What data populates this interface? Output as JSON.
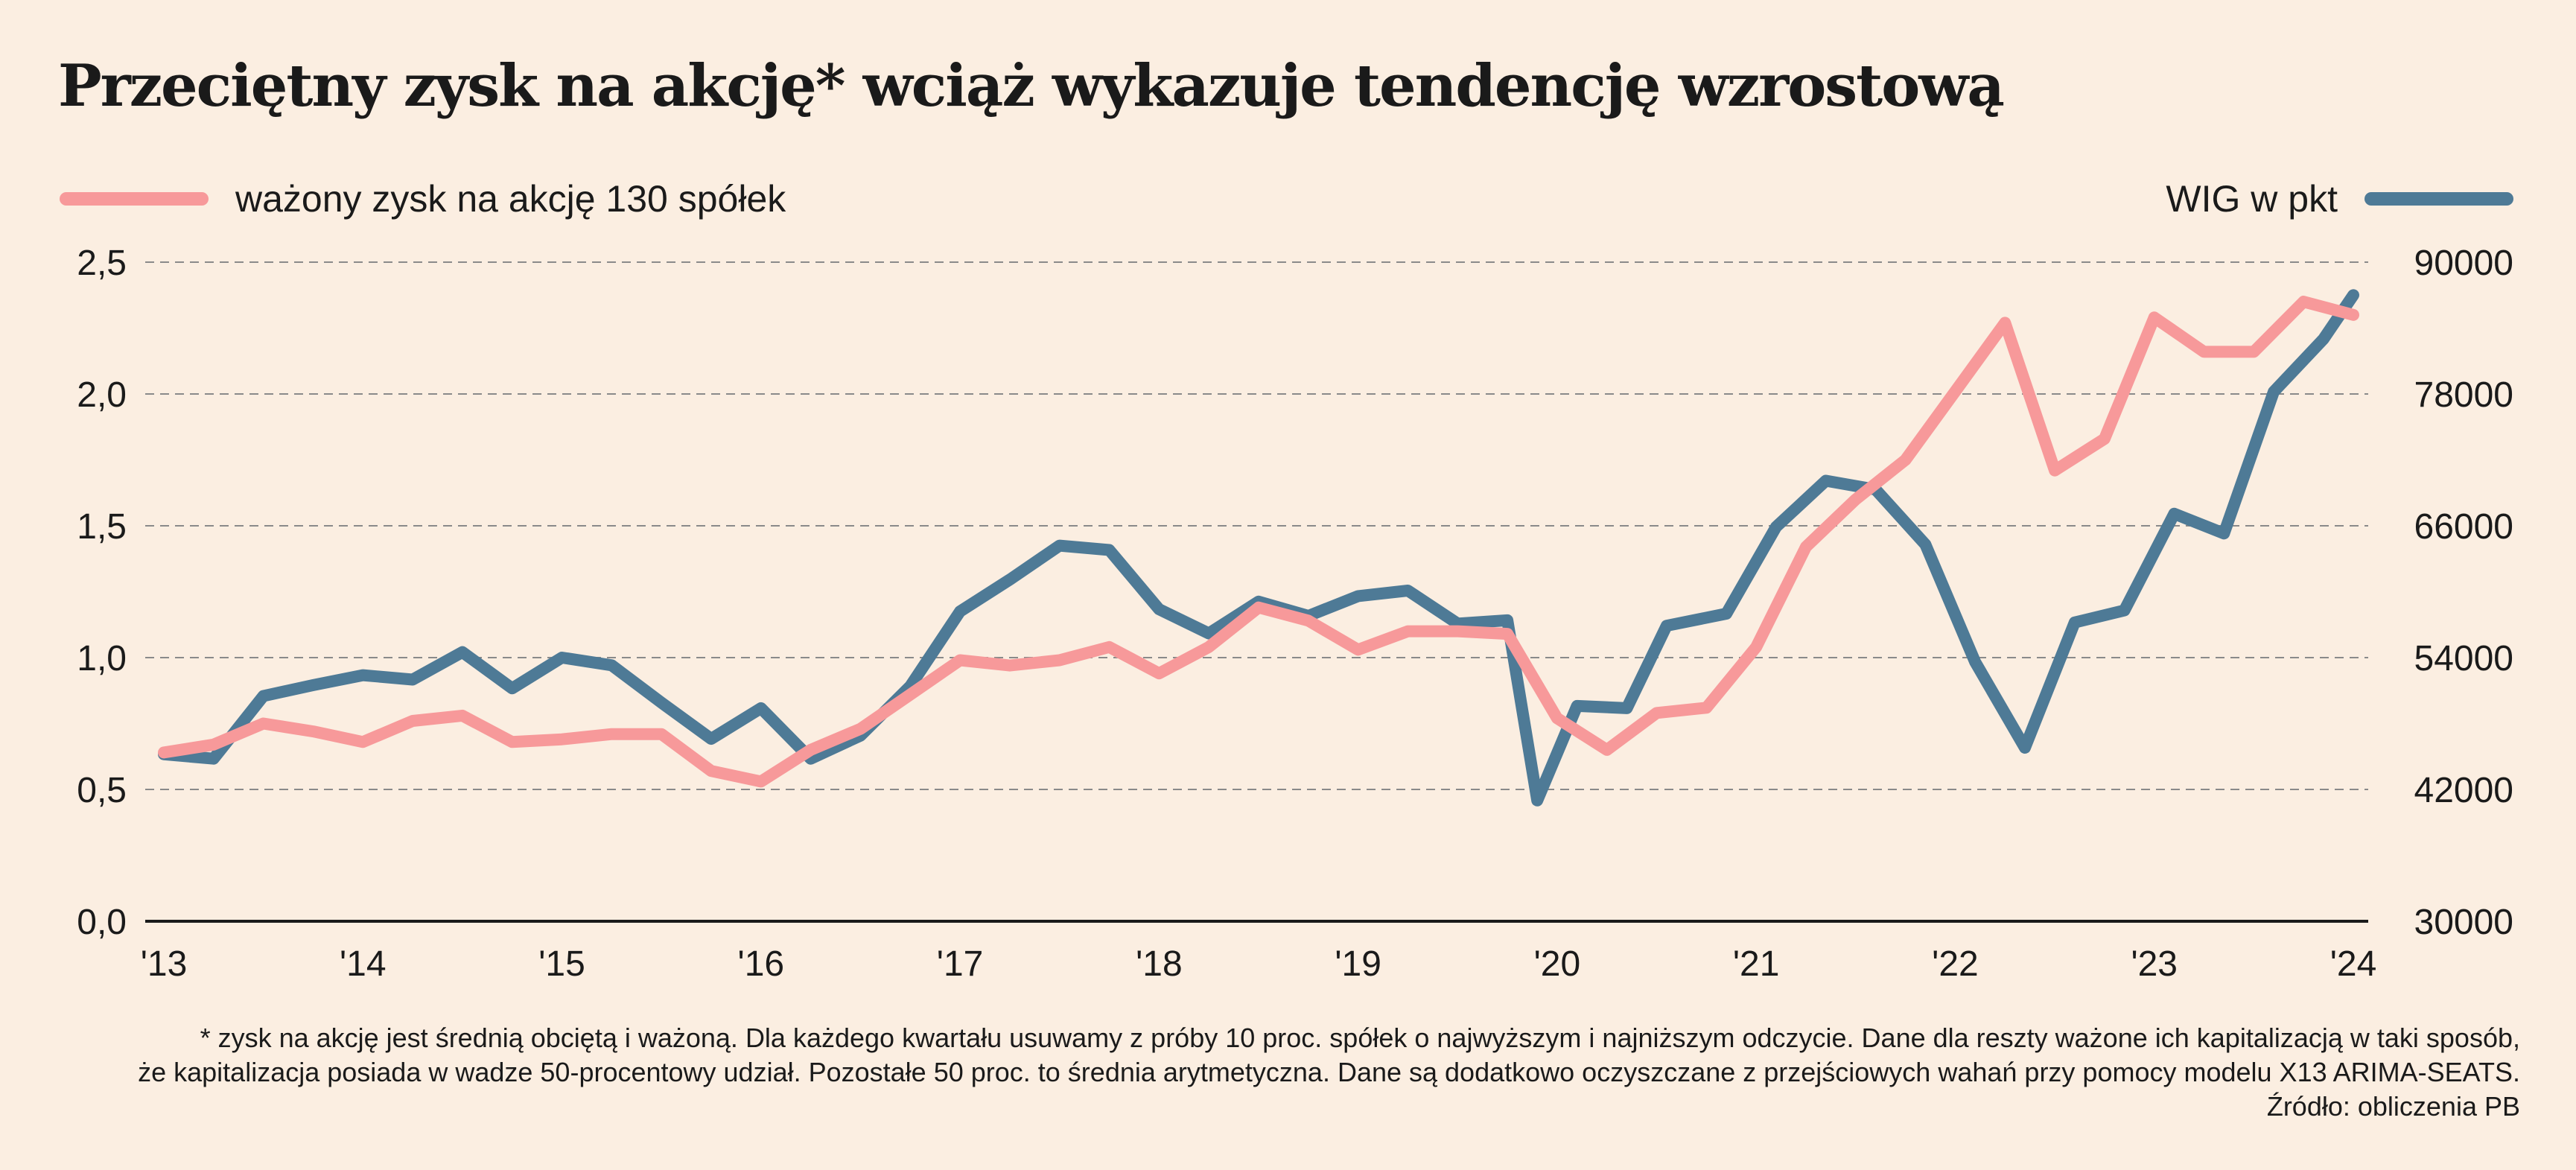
{
  "title": "Przeciętny zysk na akcję* wciąż wykazuje tendencję wzrostową",
  "legend": {
    "left_label": "ważony zysk na akcję 130 spółek",
    "right_label": "WIG w pkt"
  },
  "colors": {
    "eps_series": "#f7999a",
    "wig_series": "#4e7a96",
    "background": "#fbeee1",
    "grid": "#8a8a8a"
  },
  "chart_data": {
    "type": "line",
    "x_ticks": [
      "'13",
      "'14",
      "'15",
      "'16",
      "'17",
      "'18",
      "'19",
      "'20",
      "'21",
      "'22",
      "'23",
      "'24"
    ],
    "x_range": [
      2013,
      2024
    ],
    "y_left": {
      "ticks": [
        "0,0",
        "0,5",
        "1,0",
        "1,5",
        "2,0",
        "2,5"
      ],
      "range": [
        0,
        2.5
      ]
    },
    "y_right": {
      "ticks": [
        "30000",
        "42000",
        "54000",
        "66000",
        "78000",
        "90000"
      ],
      "range": [
        30000,
        90000
      ]
    },
    "grid": "dashed horizontal",
    "series": [
      {
        "name": "ważony zysk na akcję 130 spółek",
        "axis": "left",
        "x": [
          2013.0,
          2013.25,
          2013.5,
          2013.75,
          2014.0,
          2014.25,
          2014.5,
          2014.75,
          2015.0,
          2015.25,
          2015.5,
          2015.75,
          2016.0,
          2016.25,
          2016.5,
          2016.75,
          2017.0,
          2017.25,
          2017.5,
          2017.75,
          2018.0,
          2018.25,
          2018.5,
          2018.75,
          2019.0,
          2019.25,
          2019.5,
          2019.75,
          2020.0,
          2020.25,
          2020.5,
          2020.75,
          2021.0,
          2021.25,
          2021.5,
          2021.75,
          2022.0,
          2022.25,
          2022.5,
          2022.75,
          2023.0,
          2023.25,
          2023.5,
          2023.75,
          2024.0
        ],
        "values": [
          0.64,
          0.67,
          0.75,
          0.72,
          0.68,
          0.76,
          0.78,
          0.68,
          0.69,
          0.71,
          0.71,
          0.57,
          0.53,
          0.65,
          0.73,
          0.86,
          0.99,
          0.97,
          0.99,
          1.04,
          0.94,
          1.04,
          1.19,
          1.14,
          1.03,
          1.1,
          1.1,
          1.09,
          0.77,
          0.65,
          0.79,
          0.81,
          1.04,
          1.42,
          1.6,
          1.75,
          2.01,
          2.27,
          1.71,
          1.83,
          2.29,
          2.16,
          2.16,
          2.35,
          2.3
        ]
      },
      {
        "name": "WIG w pkt",
        "axis": "right",
        "x": [
          2013.0,
          2013.25,
          2013.5,
          2013.75,
          2014.0,
          2014.25,
          2014.5,
          2014.75,
          2015.0,
          2015.25,
          2015.5,
          2015.75,
          2016.0,
          2016.25,
          2016.5,
          2016.75,
          2017.0,
          2017.25,
          2017.5,
          2017.75,
          2018.0,
          2018.25,
          2018.5,
          2018.75,
          2019.0,
          2019.25,
          2019.5,
          2019.75,
          2019.9,
          2020.1,
          2020.35,
          2020.55,
          2020.85,
          2021.1,
          2021.35,
          2021.6,
          2021.85,
          2022.1,
          2022.35,
          2022.6,
          2022.85,
          2023.1,
          2023.35,
          2023.6,
          2023.85,
          2024.0
        ],
        "values": [
          45200,
          44800,
          50500,
          51500,
          52400,
          52000,
          54500,
          51200,
          54000,
          53300,
          49900,
          46600,
          49400,
          44800,
          46900,
          51400,
          58200,
          61100,
          64200,
          63800,
          58400,
          56200,
          59100,
          57800,
          59600,
          60100,
          57100,
          57400,
          41000,
          49600,
          49400,
          56900,
          58000,
          65900,
          70100,
          69300,
          64300,
          53600,
          45800,
          57200,
          58300,
          67100,
          65300,
          78200,
          83000,
          87000
        ]
      }
    ]
  },
  "footnote": {
    "line1": "* zysk na akcję jest średnią obciętą i ważoną. Dla każdego kwartału usuwamy z próby 10 proc. spółek o najwyższym i najniższym odczycie. Dane dla reszty ważone ich kapitalizacją w taki sposób,",
    "line2": "że kapitalizacja posiada w wadze 50-procentowy udział. Pozostałe 50 proc. to średnia arytmetyczna. Dane są dodatkowo oczyszczane z przejściowych wahań przy pomocy modelu X13 ARIMA-SEATS.",
    "source": "Źródło: obliczenia PB"
  }
}
